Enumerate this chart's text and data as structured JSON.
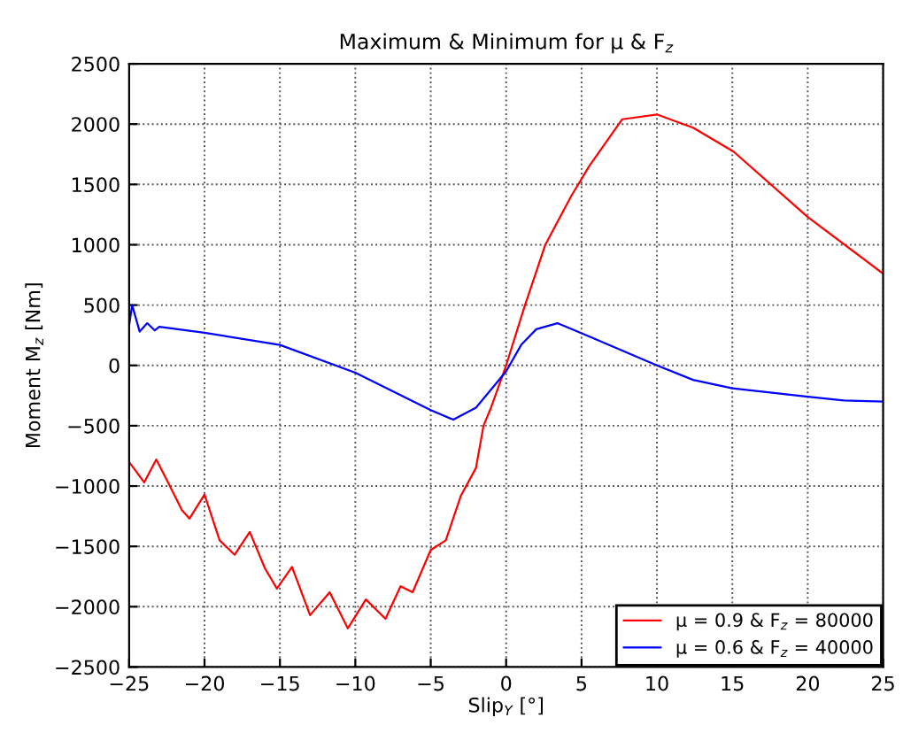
{
  "chart_data": {
    "type": "line",
    "title": "Maximum & Minimum for μ & F$_{z}$",
    "xlabel": "Slip$_{Y}$ [°]",
    "ylabel": "Moment M$_{z}$ [Nm]",
    "xlim": [
      -25,
      25
    ],
    "xticks": [
      {
        "value": -25,
        "label": "−25"
      },
      {
        "value": -20,
        "label": "−20"
      },
      {
        "value": -15,
        "label": "−15"
      },
      {
        "value": -10,
        "label": "−10"
      },
      {
        "value": -5,
        "label": "−5"
      },
      0,
      5,
      10,
      15,
      20,
      25
    ],
    "ylim": [
      -2500,
      2500
    ],
    "yticks": [
      {
        "value": -2500,
        "label": "−2500"
      },
      {
        "value": -2000,
        "label": "−2000"
      },
      {
        "value": -1500,
        "label": "−1500"
      },
      {
        "value": -1000,
        "label": "−1000"
      },
      {
        "value": -500,
        "label": "−500"
      },
      0,
      500,
      1000,
      1500,
      2000,
      2500
    ],
    "grid": true,
    "legend": "bottom right",
    "series": [
      {
        "name": "μ = 0.9 & F$_{z}$ = 80000",
        "color": "#ff0000",
        "x": [
          -25,
          -24,
          -23.2,
          -22.5,
          -21.5,
          -21,
          -20,
          -19,
          -18,
          -17,
          -16,
          -15.2,
          -14.2,
          -13,
          -11.7,
          -10.5,
          -9.3,
          -8,
          -7,
          -6.2,
          -5,
          -4,
          -3,
          -2,
          -1.5,
          -1,
          0,
          1.2,
          2.6,
          4.3,
          5.5,
          7.7,
          10,
          12.4,
          15.1,
          20,
          25
        ],
        "values": [
          -800,
          -970,
          -780,
          -950,
          -1200,
          -1270,
          -1070,
          -1450,
          -1570,
          -1380,
          -1680,
          -1850,
          -1670,
          -2070,
          -1880,
          -2180,
          -1940,
          -2100,
          -1830,
          -1880,
          -1530,
          -1450,
          -1080,
          -850,
          -500,
          -350,
          0,
          480,
          1000,
          1400,
          1650,
          2040,
          2080,
          1970,
          1770,
          1230,
          760
        ]
      },
      {
        "name": "μ = 0.6 & F$_{z}$ = 40000",
        "color": "#0000ff",
        "x": [
          -25,
          -24.8,
          -24.3,
          -23.8,
          -23.3,
          -23,
          -20,
          -15,
          -10,
          -5,
          -3.5,
          -2,
          0,
          1,
          2,
          3.4,
          5.5,
          10,
          12.4,
          15,
          20,
          22.4,
          25
        ],
        "values": [
          330,
          500,
          280,
          350,
          290,
          320,
          270,
          170,
          -60,
          -370,
          -450,
          -350,
          -50,
          170,
          300,
          350,
          240,
          0,
          -120,
          -190,
          -260,
          -290,
          -300
        ]
      }
    ]
  }
}
